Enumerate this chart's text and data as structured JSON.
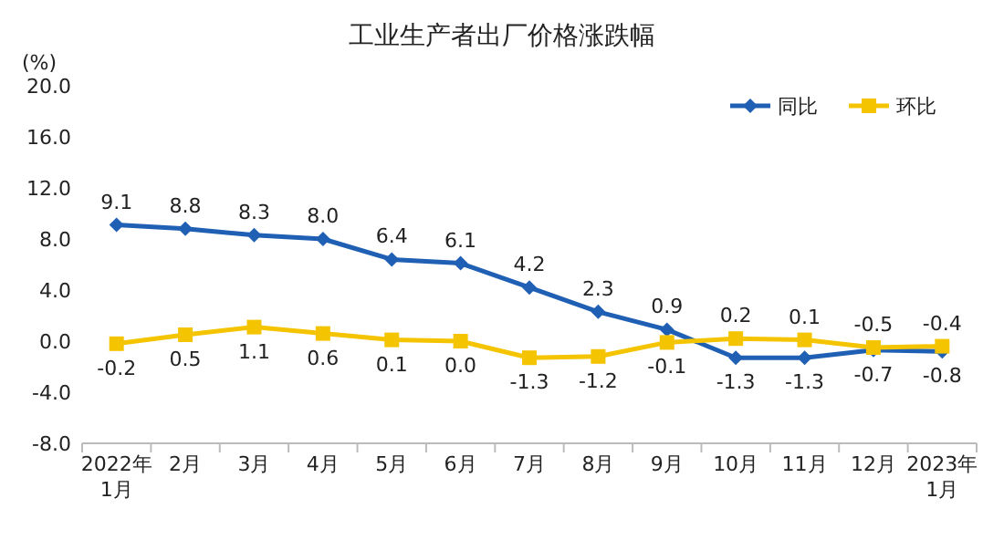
{
  "chart_data": {
    "type": "line",
    "title": "工业生产者出厂价格涨跌幅",
    "ylabel": "(%)",
    "categories": [
      "2022年\n1月",
      "2月",
      "3月",
      "4月",
      "5月",
      "6月",
      "7月",
      "8月",
      "9月",
      "10月",
      "11月",
      "12月",
      "2023年\n1月"
    ],
    "series": [
      {
        "name": "同比",
        "color": "#1f5fb4",
        "marker": "diamond",
        "values": [
          9.1,
          8.8,
          8.3,
          8.0,
          6.4,
          6.1,
          4.2,
          2.3,
          0.9,
          -1.3,
          -1.3,
          -0.7,
          -0.8
        ],
        "value_labels": [
          "9.1",
          "8.8",
          "8.3",
          "8.0",
          "6.4",
          "6.1",
          "4.2",
          "2.3",
          "0.9",
          "-1.3",
          "-1.3",
          "-0.7",
          "-0.8"
        ]
      },
      {
        "name": "环比",
        "color": "#f5c400",
        "marker": "square",
        "values": [
          -0.2,
          0.5,
          1.1,
          0.6,
          0.1,
          0.0,
          -1.3,
          -1.2,
          -0.1,
          0.2,
          0.1,
          -0.5,
          -0.4
        ],
        "value_labels": [
          "-0.2",
          "0.5",
          "1.1",
          "0.6",
          "0.1",
          "0.0",
          "-1.3",
          "-1.2",
          "-0.1",
          "0.2",
          "0.1",
          "-0.5",
          "-0.4"
        ]
      }
    ],
    "ylim": [
      -8,
      20
    ],
    "yticks": [
      {
        "value": -8,
        "label": "-8.0"
      },
      {
        "value": -4,
        "label": "-4.0"
      },
      {
        "value": 0,
        "label": "0.0"
      },
      {
        "value": 4,
        "label": "4.0"
      },
      {
        "value": 8,
        "label": "8.0"
      },
      {
        "value": 12,
        "label": "12.0"
      },
      {
        "value": 16,
        "label": "16.0"
      },
      {
        "value": 20,
        "label": "20.0"
      }
    ],
    "legend": "top right",
    "grid": false
  }
}
